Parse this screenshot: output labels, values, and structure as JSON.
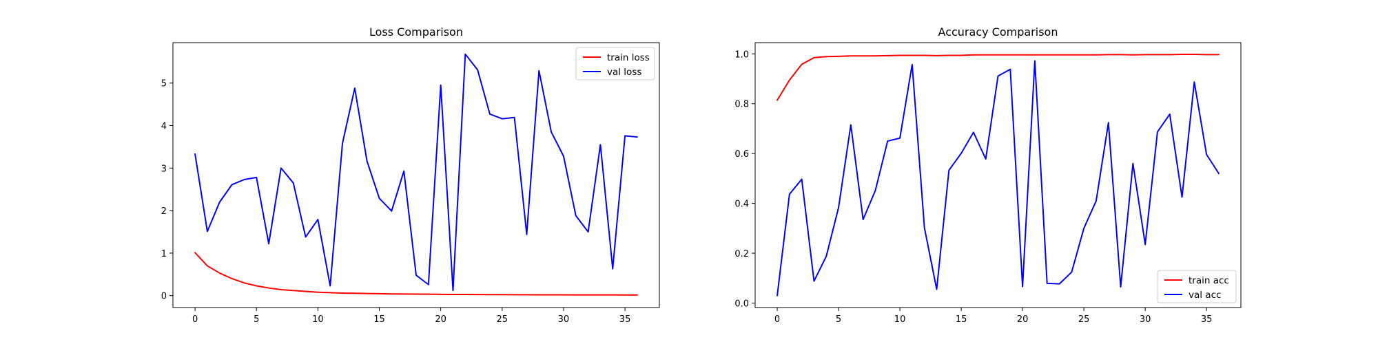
{
  "chart_data": [
    {
      "type": "line",
      "title": "Loss Comparison",
      "xlabel": "",
      "ylabel": "",
      "xlim": [
        -1.8,
        37.8
      ],
      "ylim": [
        -0.28,
        5.95
      ],
      "xticks": [
        0,
        5,
        10,
        15,
        20,
        25,
        30,
        35
      ],
      "yticks": [
        0,
        1,
        2,
        3,
        4,
        5
      ],
      "grid": false,
      "legend": "top-right",
      "series": [
        {
          "name": "train loss",
          "color": "#ff0000",
          "x": [
            0,
            1,
            2,
            3,
            4,
            5,
            6,
            7,
            8,
            9,
            10,
            11,
            12,
            13,
            14,
            15,
            16,
            17,
            18,
            19,
            20,
            21,
            22,
            23,
            24,
            25,
            26,
            27,
            28,
            29,
            30,
            31,
            32,
            33,
            34,
            35,
            36
          ],
          "values": [
            1.01,
            0.7,
            0.53,
            0.4,
            0.3,
            0.23,
            0.18,
            0.14,
            0.12,
            0.1,
            0.08,
            0.07,
            0.06,
            0.055,
            0.05,
            0.045,
            0.04,
            0.038,
            0.035,
            0.033,
            0.03,
            0.028,
            0.027,
            0.025,
            0.024,
            0.023,
            0.022,
            0.021,
            0.02,
            0.02,
            0.019,
            0.018,
            0.018,
            0.017,
            0.017,
            0.016,
            0.016
          ]
        },
        {
          "name": "val loss",
          "color": "#0000ff",
          "x": [
            0,
            1,
            2,
            3,
            4,
            5,
            6,
            7,
            8,
            9,
            10,
            11,
            12,
            13,
            14,
            15,
            16,
            17,
            18,
            19,
            20,
            21,
            22,
            23,
            24,
            25,
            26,
            27,
            28,
            29,
            30,
            31,
            32,
            33,
            34,
            35,
            36
          ],
          "values": [
            3.33,
            1.51,
            2.2,
            2.61,
            2.73,
            2.78,
            1.22,
            3.0,
            2.65,
            1.38,
            1.79,
            0.23,
            3.58,
            4.88,
            3.16,
            2.29,
            1.99,
            2.93,
            0.48,
            0.26,
            4.95,
            0.12,
            5.68,
            5.31,
            4.27,
            4.16,
            4.19,
            1.44,
            5.29,
            3.85,
            3.28,
            1.88,
            1.5,
            3.55,
            0.63,
            3.76,
            3.73
          ]
        }
      ]
    },
    {
      "type": "line",
      "title": "Accuracy Comparison",
      "xlabel": "",
      "ylabel": "",
      "xlim": [
        -1.8,
        37.8
      ],
      "ylim": [
        -0.018,
        1.045
      ],
      "xticks": [
        0,
        5,
        10,
        15,
        20,
        25,
        30,
        35
      ],
      "yticks": [
        0.0,
        0.2,
        0.4,
        0.6,
        0.8,
        1.0
      ],
      "grid": false,
      "legend": "bottom-right",
      "series": [
        {
          "name": "train acc",
          "color": "#ff0000",
          "x": [
            0,
            1,
            2,
            3,
            4,
            5,
            6,
            7,
            8,
            9,
            10,
            11,
            12,
            13,
            14,
            15,
            16,
            17,
            18,
            19,
            20,
            21,
            22,
            23,
            24,
            25,
            26,
            27,
            28,
            29,
            30,
            31,
            32,
            33,
            34,
            35,
            36
          ],
          "values": [
            0.814,
            0.895,
            0.958,
            0.985,
            0.989,
            0.99,
            0.992,
            0.992,
            0.992,
            0.993,
            0.994,
            0.994,
            0.994,
            0.993,
            0.994,
            0.994,
            0.996,
            0.996,
            0.996,
            0.996,
            0.996,
            0.996,
            0.996,
            0.996,
            0.996,
            0.996,
            0.996,
            0.997,
            0.997,
            0.996,
            0.997,
            0.997,
            0.997,
            0.998,
            0.998,
            0.997,
            0.997
          ]
        },
        {
          "name": "val acc",
          "color": "#0000ff",
          "x": [
            0,
            1,
            2,
            3,
            4,
            5,
            6,
            7,
            8,
            9,
            10,
            11,
            12,
            13,
            14,
            15,
            16,
            17,
            18,
            19,
            20,
            21,
            22,
            23,
            24,
            25,
            26,
            27,
            28,
            29,
            30,
            31,
            32,
            33,
            34,
            35,
            36
          ],
          "values": [
            0.03,
            0.437,
            0.497,
            0.088,
            0.188,
            0.383,
            0.715,
            0.335,
            0.452,
            0.65,
            0.662,
            0.957,
            0.302,
            0.055,
            0.533,
            0.601,
            0.685,
            0.578,
            0.911,
            0.938,
            0.066,
            0.972,
            0.079,
            0.077,
            0.124,
            0.3,
            0.41,
            0.724,
            0.065,
            0.56,
            0.235,
            0.687,
            0.758,
            0.425,
            0.887,
            0.596,
            0.52
          ]
        }
      ]
    }
  ]
}
